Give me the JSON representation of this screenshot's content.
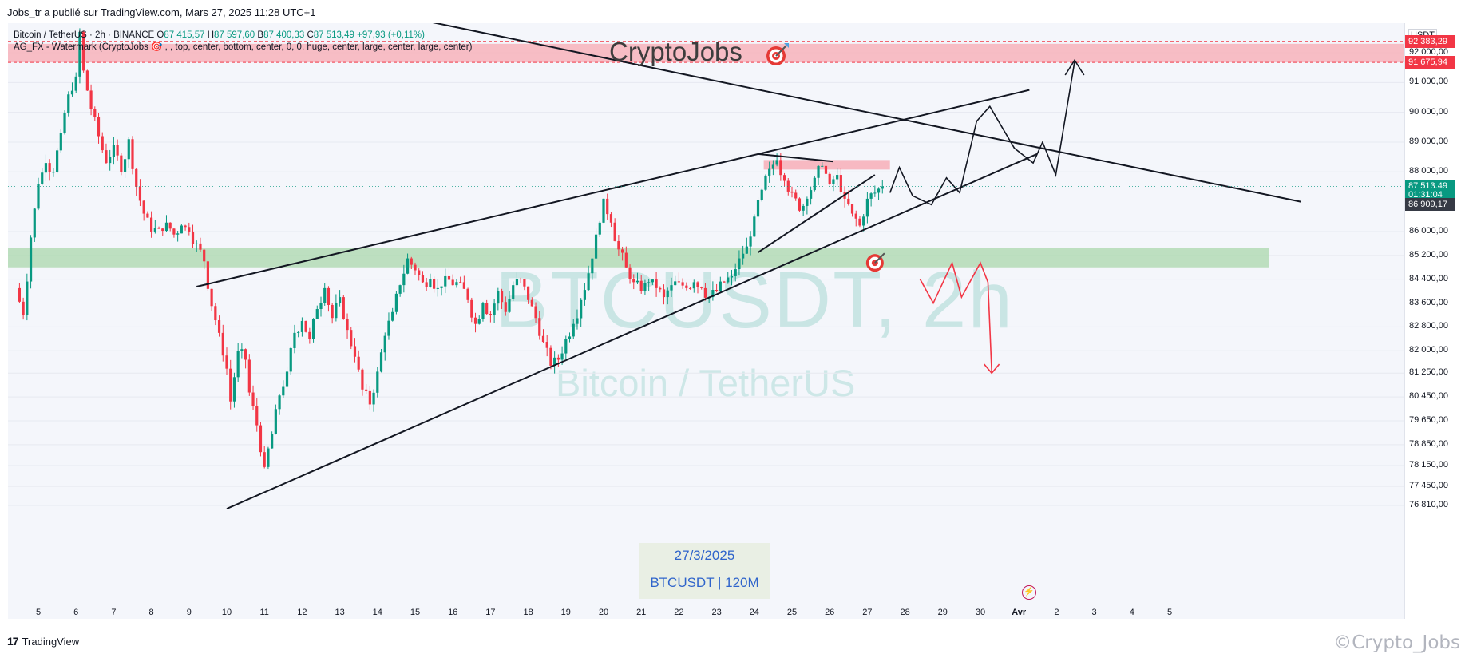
{
  "header": {
    "publish_line": "Jobs_tr a publié sur TradingView.com, Mars 27, 2025 11:28 UTC+1"
  },
  "legend": {
    "symbol": "Bitcoin / TetherUS · 2h · BINANCE",
    "o_label": "O",
    "o_value": "87 415,57",
    "h_label": "H",
    "h_value": "87 597,60",
    "l_label": "B",
    "l_value": "87 400,33",
    "c_label": "C",
    "c_value": "87 513,49",
    "change": "+97,93 (+0,11%)",
    "indicator": "AG_FX - Watermark (CryptoJobs 🎯 , , top, center, bottom, center, 0, 0, huge, center, large, center, large, center)"
  },
  "watermark": {
    "main": "BTCUSDT, 2h",
    "sub": "Bitcoin / TetherUS"
  },
  "brand": {
    "title": "CryptoJobs",
    "icon": "target-icon"
  },
  "info_box": {
    "date": "27/3/2025",
    "symbol": "BTCUSDT | 120M"
  },
  "price_axis": {
    "currency": "USDT",
    "ticks": [
      "92 000,00",
      "91 000,00",
      "90 000,00",
      "89 000,00",
      "88 000,00",
      "86 000,00",
      "85 200,00",
      "84 400,00",
      "83 600,00",
      "82 800,00",
      "82 000,00",
      "81 250,00",
      "80 450,00",
      "79 650,00",
      "78 850,00",
      "78 150,00",
      "77 450,00",
      "76 810,00"
    ],
    "labels": {
      "resistance_top": "92 383,29",
      "resistance_bottom": "91 675,94",
      "last_price": "87 513,49",
      "countdown": "01:31:04",
      "line_level": "86 909,17"
    }
  },
  "time_axis": {
    "ticks": [
      "5",
      "6",
      "7",
      "8",
      "9",
      "10",
      "11",
      "12",
      "13",
      "14",
      "15",
      "16",
      "17",
      "18",
      "19",
      "20",
      "21",
      "22",
      "23",
      "24",
      "25",
      "26",
      "27",
      "28",
      "29",
      "30",
      "Avr",
      "2",
      "3",
      "4",
      "5"
    ]
  },
  "footer": {
    "logo_text": "TradingView",
    "logo_mark": "17",
    "corner_watermark": "©Crypto_Jobs"
  },
  "colors": {
    "up": "#089981",
    "down": "#f23645",
    "resistance_zone": "#f7b3bb",
    "support_zone": "#a5d6a7",
    "projection_down": "#f23645",
    "projection_up": "#131722"
  },
  "chart_data": {
    "type": "candlestick",
    "timeframe": "2h",
    "y_range": [
      76500,
      93200
    ],
    "close_path": [
      [
        4.4,
        84100
      ],
      [
        4.6,
        83200
      ],
      [
        4.8,
        85800
      ],
      [
        5.0,
        87600
      ],
      [
        5.2,
        88300
      ],
      [
        5.4,
        88000
      ],
      [
        5.6,
        89300
      ],
      [
        5.8,
        90600
      ],
      [
        6.0,
        91200
      ],
      [
        6.1,
        92700
      ],
      [
        6.2,
        91400
      ],
      [
        6.4,
        90100
      ],
      [
        6.6,
        89200
      ],
      [
        6.8,
        88300
      ],
      [
        7.0,
        88900
      ],
      [
        7.2,
        88000
      ],
      [
        7.4,
        89100
      ],
      [
        7.6,
        87500
      ],
      [
        7.8,
        86600
      ],
      [
        8.0,
        86000
      ],
      [
        8.2,
        86100
      ],
      [
        8.4,
        86300
      ],
      [
        8.6,
        85900
      ],
      [
        8.8,
        86200
      ],
      [
        9.0,
        86000
      ],
      [
        9.2,
        85600
      ],
      [
        9.4,
        85000
      ],
      [
        9.6,
        83500
      ],
      [
        9.8,
        82600
      ],
      [
        10.0,
        81400
      ],
      [
        10.1,
        80300
      ],
      [
        10.3,
        82000
      ],
      [
        10.5,
        81700
      ],
      [
        10.6,
        80600
      ],
      [
        10.8,
        79500
      ],
      [
        10.9,
        78600
      ],
      [
        11.0,
        78100
      ],
      [
        11.2,
        79200
      ],
      [
        11.4,
        80500
      ],
      [
        11.6,
        81300
      ],
      [
        11.8,
        82600
      ],
      [
        12.0,
        83000
      ],
      [
        12.2,
        82400
      ],
      [
        12.4,
        83400
      ],
      [
        12.6,
        84100
      ],
      [
        12.8,
        83100
      ],
      [
        13.0,
        83800
      ],
      [
        13.2,
        82700
      ],
      [
        13.4,
        81800
      ],
      [
        13.6,
        80700
      ],
      [
        13.8,
        80200
      ],
      [
        14.0,
        81300
      ],
      [
        14.2,
        82500
      ],
      [
        14.4,
        83300
      ],
      [
        14.6,
        84200
      ],
      [
        14.8,
        85100
      ],
      [
        15.0,
        84700
      ],
      [
        15.2,
        84300
      ],
      [
        15.4,
        84400
      ],
      [
        15.6,
        84100
      ],
      [
        15.8,
        84500
      ],
      [
        16.0,
        84200
      ],
      [
        16.2,
        84300
      ],
      [
        16.4,
        83700
      ],
      [
        16.6,
        82900
      ],
      [
        16.8,
        83600
      ],
      [
        17.0,
        83200
      ],
      [
        17.2,
        84000
      ],
      [
        17.4,
        83300
      ],
      [
        17.6,
        84200
      ],
      [
        17.8,
        84400
      ],
      [
        18.0,
        83700
      ],
      [
        18.2,
        83100
      ],
      [
        18.4,
        82300
      ],
      [
        18.6,
        81500
      ],
      [
        18.8,
        81700
      ],
      [
        19.0,
        82400
      ],
      [
        19.2,
        82900
      ],
      [
        19.4,
        83700
      ],
      [
        19.6,
        84600
      ],
      [
        19.8,
        85900
      ],
      [
        20.0,
        87100
      ],
      [
        20.2,
        86300
      ],
      [
        20.4,
        85400
      ],
      [
        20.6,
        84800
      ],
      [
        20.8,
        84300
      ],
      [
        21.0,
        84000
      ],
      [
        21.2,
        84300
      ],
      [
        21.4,
        84100
      ],
      [
        21.6,
        83800
      ],
      [
        21.8,
        84200
      ],
      [
        22.0,
        84300
      ],
      [
        22.2,
        84100
      ],
      [
        22.4,
        84300
      ],
      [
        22.6,
        84100
      ],
      [
        22.8,
        83800
      ],
      [
        23.0,
        84000
      ],
      [
        23.2,
        84300
      ],
      [
        23.4,
        84500
      ],
      [
        23.6,
        85100
      ],
      [
        23.8,
        85500
      ],
      [
        24.0,
        86500
      ],
      [
        24.2,
        87400
      ],
      [
        24.4,
        88100
      ],
      [
        24.6,
        88400
      ],
      [
        24.8,
        87700
      ],
      [
        25.0,
        87300
      ],
      [
        25.2,
        86700
      ],
      [
        25.4,
        87100
      ],
      [
        25.6,
        87800
      ],
      [
        25.8,
        88200
      ],
      [
        26.0,
        87600
      ],
      [
        26.2,
        87900
      ],
      [
        26.4,
        87100
      ],
      [
        26.6,
        86600
      ],
      [
        26.8,
        86200
      ],
      [
        27.0,
        87100
      ],
      [
        27.2,
        87300
      ],
      [
        27.4,
        87513
      ]
    ],
    "support_zone": [
      84800,
      85450
    ],
    "resistance_zone": [
      91675.94,
      92383.29
    ]
  }
}
